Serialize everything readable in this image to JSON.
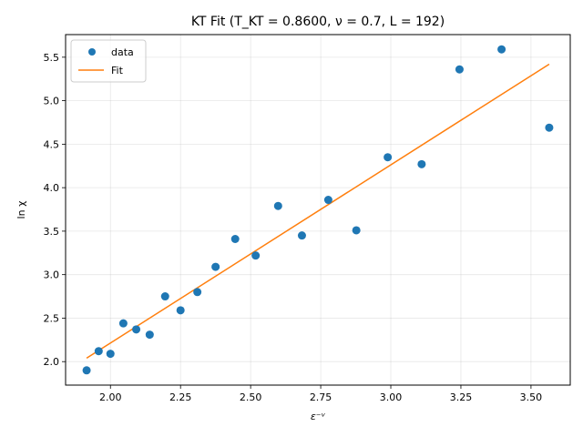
{
  "chart_data": {
    "type": "scatter",
    "title": "KT Fit (T_KT = 0.8600, ν = 0.7, L = 192)",
    "xlabel": "ε⁻ᵛ",
    "ylabel": "ln χ",
    "xlim": [
      1.84,
      3.64
    ],
    "ylim": [
      1.73,
      5.76
    ],
    "x_ticks": [
      "2.00",
      "2.25",
      "2.50",
      "2.75",
      "3.00",
      "3.25",
      "3.50"
    ],
    "y_ticks": [
      "2.0",
      "2.5",
      "3.0",
      "3.5",
      "4.0",
      "4.5",
      "5.0",
      "5.5"
    ],
    "grid": true,
    "legend": {
      "position": "top-left",
      "entries": [
        "data",
        "Fit"
      ]
    },
    "series": [
      {
        "name": "data",
        "kind": "scatter",
        "color": "#1f77b4",
        "points": [
          [
            1.915,
            1.9
          ],
          [
            1.958,
            2.12
          ],
          [
            2.0,
            2.09
          ],
          [
            2.046,
            2.44
          ],
          [
            2.092,
            2.37
          ],
          [
            2.14,
            2.31
          ],
          [
            2.195,
            2.75
          ],
          [
            2.25,
            2.59
          ],
          [
            2.31,
            2.8
          ],
          [
            2.375,
            3.09
          ],
          [
            2.445,
            3.41
          ],
          [
            2.518,
            3.22
          ],
          [
            2.598,
            3.79
          ],
          [
            2.683,
            3.45
          ],
          [
            2.777,
            3.86
          ],
          [
            2.877,
            3.51
          ],
          [
            2.989,
            4.35
          ],
          [
            3.11,
            4.27
          ],
          [
            3.245,
            5.36
          ],
          [
            3.395,
            5.59
          ],
          [
            3.565,
            4.69
          ]
        ]
      },
      {
        "name": "Fit",
        "kind": "line",
        "color": "#ff7f0e",
        "points": [
          [
            1.915,
            2.04
          ],
          [
            3.565,
            5.42
          ]
        ]
      }
    ]
  }
}
